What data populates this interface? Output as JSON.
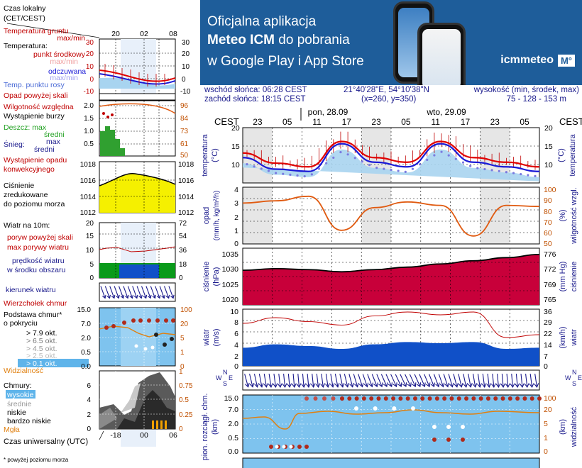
{
  "banner": {
    "line1": "Oficjalna aplikacja",
    "line2_bold": "Meteo ICM",
    "line2_rest": " do pobrania",
    "line3": "w Google Play i App Store",
    "logo_text": "icmmeteo",
    "logo_mark": "M°"
  },
  "info": {
    "sunrise": "wschód słońca: 06:28 CEST",
    "sunset": "zachód słońca: 18:15 CEST",
    "coords": "21°40'28\"E, 54°10'38\"N",
    "grid": "(x=260,  y=350)",
    "height_label": "wysokość (min, środek, max)",
    "height_values": "75 - 128 - 153 m"
  },
  "legend": {
    "local_time": "Czas lokalny",
    "local_time_zone": "(CET/CEST)",
    "local_ticks": [
      "20",
      "02",
      "08"
    ],
    "ground_temp": "Temperatura gruntu",
    "ground_temp_sub": "max/min",
    "temp": "Temperatura:",
    "temp_mid": "punkt środkowy",
    "temp_range": "max/min",
    "felt": "odczuwana",
    "felt_range": "max/min",
    "dew": "Temp. punktu rosy",
    "temp_axis": [
      "30",
      "20",
      "10",
      "0",
      "-10"
    ],
    "precip_above": "Opad powyżej skali",
    "humidity": "Wilgotność względna",
    "storm": "Wystąpienie burzy",
    "rain_max": "Deszcz: max",
    "rain_mid": "średni",
    "snow_max": "max",
    "snow": "Śnieg:",
    "snow_mid": "średni",
    "precip_type": "Wystąpienie opadu",
    "precip_type2": "konwekcyjnego",
    "precip_axis": [
      "2.0",
      "1.5",
      "1.0",
      "0.5"
    ],
    "humidity_axis": [
      "96",
      "84",
      "73",
      "61",
      "50"
    ],
    "pressure": "Ciśnienie",
    "pressure2": "zredukowane",
    "pressure3": "do poziomu morza",
    "pressure_axis": [
      "1018",
      "1016",
      "1014",
      "1012"
    ],
    "wind_at": "Wiatr na 10m:",
    "gust_above": "poryw powyżej skali",
    "gust_max": "max porywy wiatru",
    "wind_mean": "prędkość wiatru",
    "wind_area": "w środku obszaru",
    "wind_axis": [
      "20",
      "15",
      "10",
      "5",
      "0"
    ],
    "wind_kmh": [
      "72",
      "54",
      "36",
      "18",
      "0"
    ],
    "wind_dir": "kierunek wiatru",
    "cloud_top": "Wierzchołek chmur",
    "cloud_base": "Podstawa chmur*",
    "coverage": "o pokryciu",
    "okt": [
      "> 7.9 okt.",
      "> 6.5 okt.",
      "> 4.5 okt.",
      "> 2.5 okt.",
      "> 0.1 okt."
    ],
    "cb_axis": [
      "15.0",
      "7.0",
      "2.0",
      "0.5",
      "0.0"
    ],
    "vis_axis": [
      "100",
      "20",
      "5",
      "1",
      "0"
    ],
    "visibility": "Widzialność",
    "clouds": "Chmury:",
    "cl_high": "wysokie",
    "cl_mid": "średnie",
    "cl_low": "niskie",
    "cl_vlow": "bardzo niskie",
    "fog": "Mgła",
    "cl_axis": [
      "6",
      "4",
      "2",
      "0"
    ],
    "cl_axis_r": [
      "1",
      "0.75",
      "0.5",
      "0.25",
      "0"
    ],
    "utc": "Czas uniwersalny (UTC)",
    "utc_ticks": [
      "18",
      "00",
      "06"
    ],
    "footnote": "* powyżej poziomu morza"
  },
  "main": {
    "cest": "CEST",
    "day1": "pon, 28.09",
    "day2": "wto, 29.09",
    "hours": [
      "23",
      "05",
      "11",
      "17",
      "23",
      "05",
      "11",
      "17",
      "23",
      "05"
    ],
    "temp_label": "temperatura",
    "temp_unit": "(°C)",
    "temp_ticks": [
      "20",
      "15",
      "10"
    ],
    "precip_label": "opad",
    "precip_unit": "(mm/h, kg/m²/h)",
    "precip_ticks": [
      "4",
      "3",
      "2",
      "1",
      "0"
    ],
    "hum_label": "wilgotność wzgl.",
    "hum_unit": "(%)",
    "hum_ticks": [
      "100",
      "90",
      "80",
      "70",
      "60",
      "50"
    ],
    "press_label": "ciśnienie",
    "press_unit": "(hPa)",
    "press_ticks": [
      "1035",
      "1030",
      "1025",
      "1020"
    ],
    "press_mmhg_label": "ciśnienie",
    "press_mmhg_unit": "(mm Hg)",
    "press_mmhg_ticks": [
      "776",
      "772",
      "769",
      "765"
    ],
    "wind_label": "wiatr",
    "wind_unit": "(m/s)",
    "wind_ticks": [
      "10",
      "8",
      "6",
      "4",
      "2",
      "0"
    ],
    "wind_kmh_unit": "(km/h)",
    "wind_kmh_ticks": [
      "36",
      "29",
      "22",
      "14",
      "7",
      "0"
    ],
    "compass": [
      "W",
      "N",
      "E",
      "S"
    ],
    "cloud_label": "pion. rozciągł. chm.",
    "cloud_unit": "(km)",
    "cloud_ticks": [
      "15.0",
      "7.0",
      "2.0",
      "0.5",
      "0.0"
    ],
    "vis_label": "widzialność",
    "vis_unit": "(km)",
    "vis_ticks": [
      "100",
      "20",
      "5",
      "1",
      "0"
    ]
  },
  "colors": {
    "banner": "#1e5d9a",
    "temp": "#e00000",
    "felt": "#1a1ad6",
    "humidity": "#e05a10",
    "pressure_fill": "#c8003a",
    "wind_fill": "#1050c8",
    "axis_text": "#1a1a8c",
    "temp_axis": "#c00000"
  },
  "chart_data": [
    {
      "type": "line",
      "title": "temperatura",
      "x": [
        "23",
        "05",
        "11",
        "17",
        "23",
        "05",
        "11",
        "17",
        "23",
        "05"
      ],
      "series": [
        {
          "name": "temperatura",
          "values": [
            14.5,
            12.3,
            11.5,
            17.0,
            13.5,
            12.5,
            17.0,
            13.5,
            12.5,
            11.5
          ]
        },
        {
          "name": "odczuwana",
          "values": [
            13.5,
            11.0,
            10.5,
            16.5,
            12.5,
            11.5,
            16.5,
            12.5,
            11.5,
            10.5
          ]
        }
      ],
      "ylim": [
        8,
        20
      ]
    },
    {
      "type": "line",
      "title": "wilgotność wzgl.",
      "x": [
        "23",
        "05",
        "11",
        "17",
        "23",
        "05",
        "11",
        "17",
        "23",
        "05"
      ],
      "series": [
        {
          "name": "wilgotność wzgl.",
          "values": [
            86,
            88,
            92,
            62,
            82,
            87,
            84,
            57,
            84,
            83
          ]
        }
      ],
      "ylim": [
        50,
        100
      ]
    },
    {
      "type": "area",
      "title": "ciśnienie",
      "x": [
        "23",
        "05",
        "11",
        "17",
        "23",
        "05",
        "11",
        "17",
        "23",
        "05"
      ],
      "series": [
        {
          "name": "ciśnienie",
          "values": [
            1029,
            1029.5,
            1029.2,
            1028.5,
            1029.2,
            1030,
            1031,
            1032,
            1033,
            1034
          ]
        }
      ],
      "ylim": [
        1018,
        1036
      ]
    },
    {
      "type": "area",
      "title": "wiatr",
      "x": [
        "23",
        "05",
        "11",
        "17",
        "23",
        "05",
        "11",
        "17",
        "23",
        "05"
      ],
      "series": [
        {
          "name": "wiatr",
          "values": [
            3.2,
            3.8,
            3.5,
            3.0,
            3.8,
            4.2,
            4.0,
            4.2,
            3.0,
            3.2
          ]
        },
        {
          "name": "max porywy wiatru",
          "values": [
            7.5,
            8.5,
            7.8,
            7.2,
            8.8,
            9.5,
            9.0,
            9.5,
            5.0,
            5.5
          ]
        }
      ],
      "ylim": [
        0,
        10
      ]
    }
  ]
}
